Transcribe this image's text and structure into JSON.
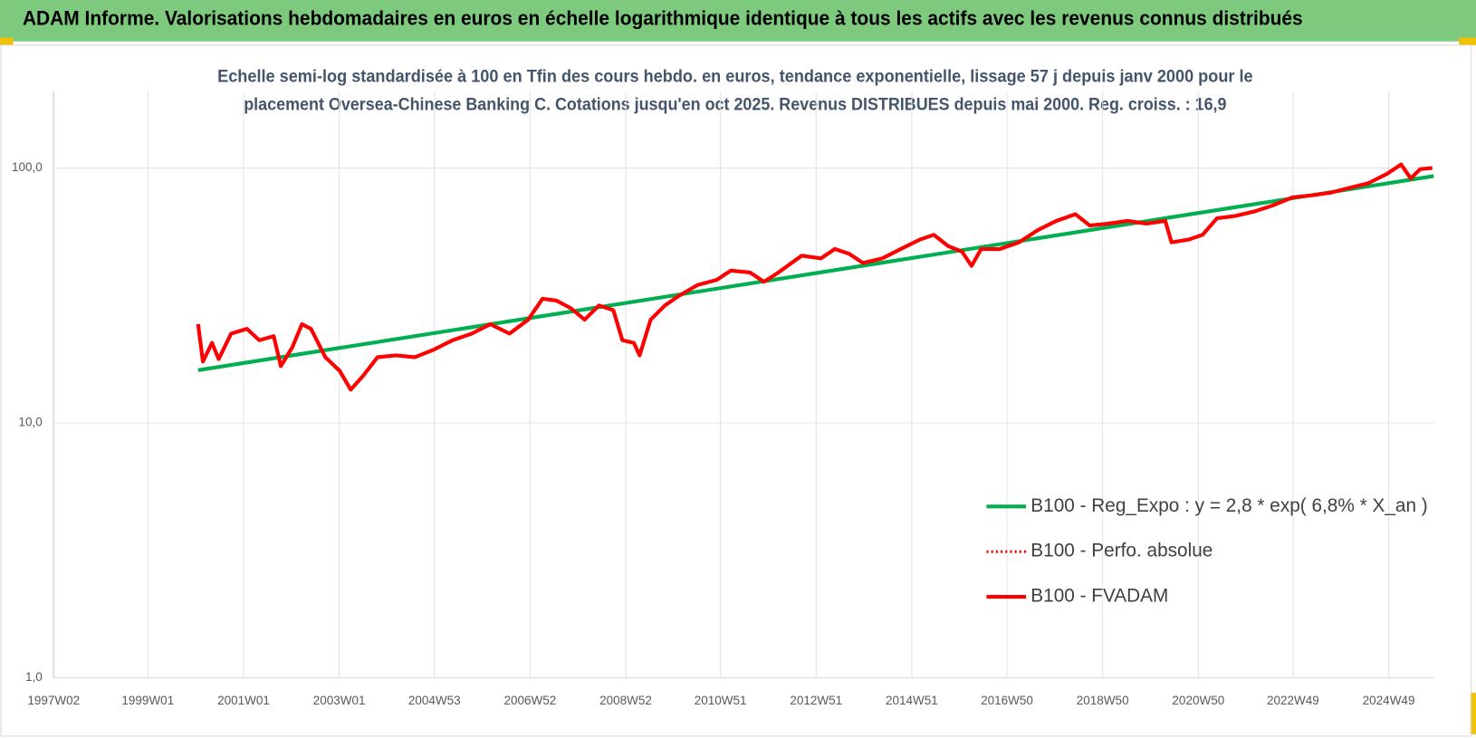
{
  "chart_data": {
    "type": "line",
    "title": "ADAM Informe. Valorisations hebdomadaires en euros en échelle logarithmique identique à tous les actifs avec les revenus connus distribués",
    "subtitle": [
      "Echelle semi-log standardisée à 100 en Tfin des cours hebdo. en euros, tendance exponentielle, lissage 57 j depuis janv 2000 pour le",
      "placement Oversea-Chinese Banking C. Cotations jusqu'en oct 2025. Revenus DISTRIBUES depuis mai 2000. Reg. croiss. : 16,9"
    ],
    "log_scale": true,
    "grid": true,
    "legend": "right",
    "xlim": [
      1997.03,
      2025.88
    ],
    "ylim": [
      1,
      200
    ],
    "yticks": [
      {
        "value": 1,
        "label": "1,0"
      },
      {
        "value": 10,
        "label": "10,0"
      },
      {
        "value": 100,
        "label": "100,0"
      }
    ],
    "xticks": [
      {
        "value": 1997.03,
        "label": "1997W02"
      },
      {
        "value": 1999.0,
        "label": "1999W01"
      },
      {
        "value": 2001.0,
        "label": "2001W01"
      },
      {
        "value": 2003.0,
        "label": "2003W01"
      },
      {
        "value": 2004.99,
        "label": "2004W53"
      },
      {
        "value": 2006.99,
        "label": "2006W52"
      },
      {
        "value": 2008.99,
        "label": "2008W52"
      },
      {
        "value": 2010.97,
        "label": "2010W51"
      },
      {
        "value": 2012.97,
        "label": "2012W51"
      },
      {
        "value": 2014.97,
        "label": "2014W51"
      },
      {
        "value": 2016.96,
        "label": "2016W50"
      },
      {
        "value": 2018.96,
        "label": "2018W50"
      },
      {
        "value": 2020.96,
        "label": "2020W50"
      },
      {
        "value": 2022.94,
        "label": "2022W49"
      },
      {
        "value": 2024.94,
        "label": "2024W49"
      }
    ],
    "x": [
      2000.05,
      2000.15,
      2000.34,
      2000.48,
      2000.74,
      2001.07,
      2001.33,
      2001.63,
      2001.78,
      2002.02,
      2002.22,
      2002.41,
      2002.71,
      2003.01,
      2003.24,
      2003.5,
      2003.8,
      2004.19,
      2004.58,
      2004.98,
      2005.37,
      2005.77,
      2006.16,
      2006.56,
      2006.95,
      2007.25,
      2007.54,
      2007.84,
      2008.13,
      2008.43,
      2008.73,
      2008.92,
      2009.16,
      2009.28,
      2009.51,
      2009.81,
      2010.1,
      2010.5,
      2010.89,
      2011.19,
      2011.59,
      2011.88,
      2012.18,
      2012.67,
      2013.07,
      2013.36,
      2013.66,
      2013.95,
      2014.35,
      2014.74,
      2015.14,
      2015.43,
      2015.73,
      2016.02,
      2016.22,
      2016.42,
      2016.81,
      2017.21,
      2017.6,
      2017.99,
      2018.39,
      2018.69,
      2019.08,
      2019.48,
      2019.87,
      2020.27,
      2020.4,
      2020.76,
      2021.05,
      2021.35,
      2021.74,
      2022.14,
      2022.53,
      2022.93,
      2023.32,
      2023.72,
      2024.11,
      2024.51,
      2024.9,
      2025.2,
      2025.4,
      2025.6,
      2025.85
    ],
    "series": [
      {
        "name": "B100 - Reg_Expo : y = 2,8 * exp( 6,8% *  X_an )",
        "color": "#00b050",
        "x": [
          2000.05,
          2025.88
        ],
        "values": [
          16.1,
          93
        ]
      },
      {
        "name": "B100 - Perfo. absolue",
        "color": "#ff0000",
        "dash": "dotted",
        "values": [
          24.4,
          17.4,
          20.6,
          17.8,
          22.4,
          23.4,
          21.1,
          21.9,
          16.7,
          19.8,
          24.4,
          23.4,
          18.1,
          16.0,
          13.5,
          15.3,
          18.1,
          18.4,
          18.1,
          19.4,
          21.1,
          22.4,
          24.4,
          22.4,
          25.4,
          30.7,
          30.2,
          28.2,
          25.4,
          28.9,
          27.7,
          21.1,
          20.6,
          18.4,
          25.4,
          28.9,
          31.5,
          34.8,
          36.4,
          39.6,
          38.9,
          35.8,
          38.9,
          45.3,
          44.2,
          48.1,
          46.1,
          42.4,
          44.2,
          48.1,
          52.4,
          54.7,
          49.4,
          47,
          41.3,
          48.1,
          48.1,
          51.1,
          57,
          62,
          65.9,
          59.5,
          60.5,
          62,
          60.5,
          62,
          51.1,
          52.4,
          54.7,
          63.5,
          64.9,
          67.6,
          71.5,
          76.7,
          78.1,
          80,
          83.5,
          87.1,
          94.8,
          103.3,
          91,
          99,
          100
        ]
      },
      {
        "name": "B100 - FVADAM",
        "color": "#ff0000",
        "values": [
          24.4,
          17.4,
          20.6,
          17.8,
          22.4,
          23.4,
          21.1,
          21.9,
          16.7,
          19.8,
          24.4,
          23.4,
          18.1,
          16.0,
          13.5,
          15.3,
          18.1,
          18.4,
          18.1,
          19.4,
          21.1,
          22.4,
          24.4,
          22.4,
          25.4,
          30.7,
          30.2,
          28.2,
          25.4,
          28.9,
          27.7,
          21.1,
          20.6,
          18.4,
          25.4,
          28.9,
          31.5,
          34.8,
          36.4,
          39.6,
          38.9,
          35.8,
          38.9,
          45.3,
          44.2,
          48.1,
          46.1,
          42.4,
          44.2,
          48.1,
          52.4,
          54.7,
          49.4,
          47,
          41.3,
          48.1,
          48.1,
          51.1,
          57,
          62,
          65.9,
          59.5,
          60.5,
          62,
          60.5,
          62,
          51.1,
          52.4,
          54.7,
          63.5,
          64.9,
          67.6,
          71.5,
          76.7,
          78.1,
          80,
          83.5,
          87.1,
          94.8,
          103.3,
          91,
          99,
          100
        ]
      }
    ]
  }
}
